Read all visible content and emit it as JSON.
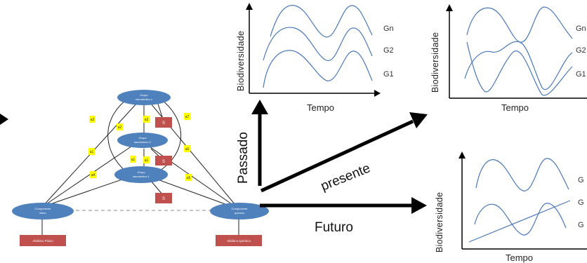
{
  "network": {
    "top_node": {
      "label_1": "Grupo",
      "label_2": "taxonômico x"
    },
    "mid_node": {
      "label_1": "Grupo",
      "label_2": "taxonômico 2"
    },
    "low_node": {
      "label_1": "Grupo",
      "label_2": "taxonômico 1"
    },
    "left_node": {
      "label_1": "Componente",
      "label_2": "físico"
    },
    "right_node": {
      "label_1": "Componente",
      "label_2": "químico"
    },
    "s_boxes": [
      "S",
      "S",
      "S"
    ],
    "left_red_box": "Abiótico Físico",
    "right_red_box": "Abiótico Químico",
    "yellow_tags": [
      "a3",
      "a2",
      "a3",
      "a7",
      "a1",
      "a1",
      "a6",
      "a1",
      "a4",
      "a5"
    ]
  },
  "arrows": {
    "past": "Passado",
    "present": "presente",
    "future": "Futuro"
  },
  "charts": {
    "top_left": {
      "ylabel": "Biodiversidade",
      "xlabel": "Tempo",
      "series": [
        "Gn",
        "G2",
        "G1"
      ]
    },
    "top_right": {
      "ylabel": "Biodiversidade",
      "xlabel": "Tempo",
      "series": [
        "Gn",
        "G2",
        "G1"
      ]
    },
    "bottom_right": {
      "ylabel": "Biodiversidade",
      "xlabel": "Tempo",
      "series": [
        "G",
        "G",
        "G"
      ]
    }
  },
  "colors": {
    "node_fill": "#4f81bd",
    "red_box": "#c0504d",
    "yellow_tag": "#ffff00",
    "curve": "#4a78b8"
  }
}
